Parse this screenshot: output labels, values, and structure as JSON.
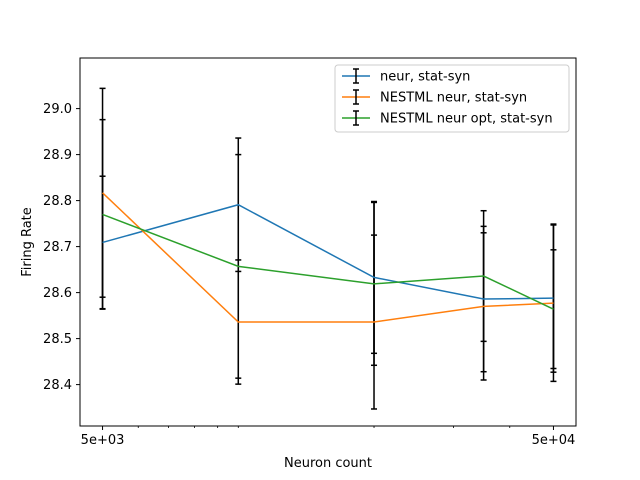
{
  "chart_data": {
    "type": "line",
    "xscale": "log",
    "x": [
      5000,
      10000,
      20000,
      35000,
      50000
    ],
    "xtick_labels": [
      "5e+03",
      "5e+04"
    ],
    "xlabel": "Neuron count",
    "ylabel": "Firing Rate",
    "ylim": [
      28.31,
      29.11
    ],
    "yticks": [
      28.4,
      28.5,
      28.6,
      28.7,
      28.8,
      28.9,
      29.0
    ],
    "ytick_labels": [
      "28.4",
      "28.5",
      "28.6",
      "28.7",
      "28.8",
      "28.9",
      "29.0"
    ],
    "legend_position": "upper-right",
    "grid": false,
    "series": [
      {
        "name": "neur, stat-syn",
        "color": "#1f77b4",
        "values": [
          28.709,
          28.791,
          28.633,
          28.586,
          28.588
        ],
        "yerr": [
          0.144,
          0.145,
          0.165,
          0.158,
          0.161
        ]
      },
      {
        "name": "NESTML neur, stat-syn",
        "color": "#ff7f0e",
        "values": [
          28.817,
          28.536,
          28.536,
          28.57,
          28.577
        ],
        "yerr": [
          0.227,
          0.135,
          0.189,
          0.16,
          0.17
        ]
      },
      {
        "name": "NESTML neur opt, stat-syn",
        "color": "#2ca02c",
        "values": [
          28.77,
          28.657,
          28.619,
          28.636,
          28.564
        ],
        "yerr": [
          0.206,
          0.243,
          0.177,
          0.142,
          0.129
        ]
      }
    ]
  }
}
